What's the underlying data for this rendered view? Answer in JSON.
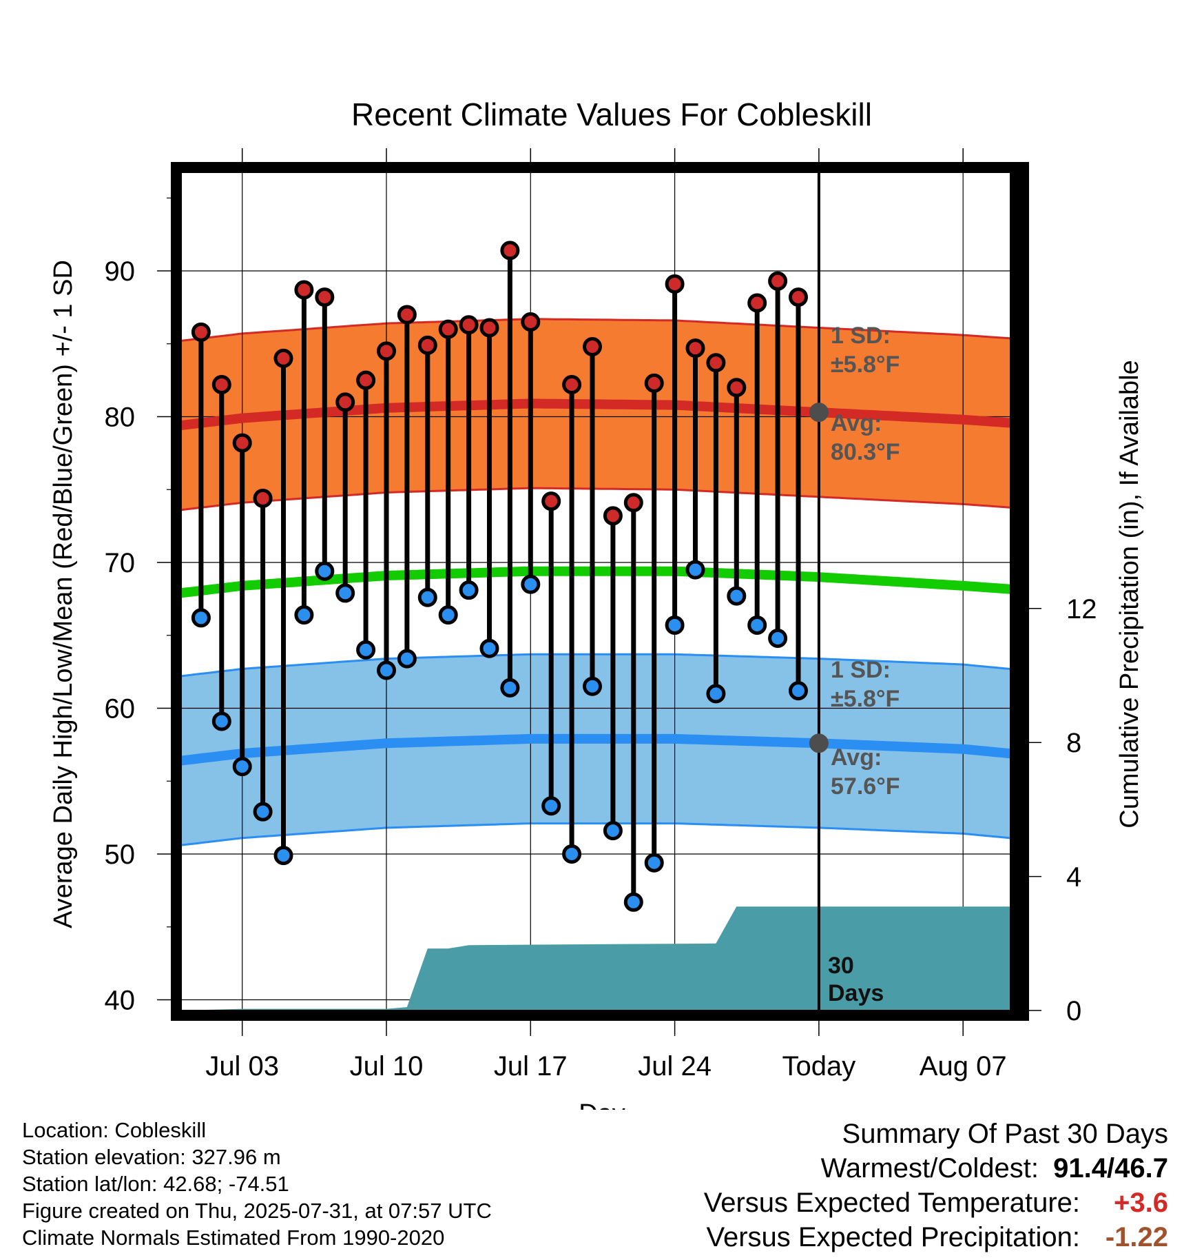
{
  "chart_data": {
    "type": "line",
    "title": "Recent Climate Values For Cobleskill",
    "xlabel": "Day",
    "ylabel": "Average Daily High/Low/Mean (Red/Blue/Green) +/- 1 SD",
    "y2label": "Cumulative Precipitation (in), If Available",
    "ylim": [
      39,
      97
    ],
    "y2lim": [
      0,
      19.4
    ],
    "x_tick_labels": [
      "Jul 03",
      "Jul 10",
      "Jul 17",
      "Jul 24",
      "Today",
      "Aug 07"
    ],
    "y_ticks": [
      40,
      50,
      60,
      70,
      80,
      90
    ],
    "y2_ticks": [
      0,
      4,
      8,
      12
    ],
    "grid": true,
    "days": [
      {
        "day": "Jul 01",
        "high": 85.8,
        "low": 66.2
      },
      {
        "day": "Jul 02",
        "high": 82.2,
        "low": 59.1
      },
      {
        "day": "Jul 03",
        "high": 78.2,
        "low": 56.0
      },
      {
        "day": "Jul 04",
        "high": 74.4,
        "low": 52.9
      },
      {
        "day": "Jul 05",
        "high": 84.0,
        "low": 49.9
      },
      {
        "day": "Jul 06",
        "high": 88.7,
        "low": 66.4
      },
      {
        "day": "Jul 07",
        "high": 88.2,
        "low": 69.4
      },
      {
        "day": "Jul 08",
        "high": 81.0,
        "low": 67.9
      },
      {
        "day": "Jul 09",
        "high": 82.5,
        "low": 64.0
      },
      {
        "day": "Jul 10",
        "high": 84.5,
        "low": 62.6
      },
      {
        "day": "Jul 11",
        "high": 87.0,
        "low": 63.4
      },
      {
        "day": "Jul 12",
        "high": 84.9,
        "low": 67.6
      },
      {
        "day": "Jul 13",
        "high": 86.0,
        "low": 66.4
      },
      {
        "day": "Jul 14",
        "high": 86.3,
        "low": 68.1
      },
      {
        "day": "Jul 15",
        "high": 86.1,
        "low": 64.1
      },
      {
        "day": "Jul 16",
        "high": 91.4,
        "low": 61.4
      },
      {
        "day": "Jul 17",
        "high": 86.5,
        "low": 68.5
      },
      {
        "day": "Jul 18",
        "high": 74.2,
        "low": 53.3
      },
      {
        "day": "Jul 19",
        "high": 82.2,
        "low": 50.0
      },
      {
        "day": "Jul 20",
        "high": 84.8,
        "low": 61.5
      },
      {
        "day": "Jul 21",
        "high": 73.2,
        "low": 51.6
      },
      {
        "day": "Jul 22",
        "high": 74.1,
        "low": 46.7
      },
      {
        "day": "Jul 23",
        "high": 82.3,
        "low": 49.4
      },
      {
        "day": "Jul 24",
        "high": 89.1,
        "low": 65.7
      },
      {
        "day": "Jul 25",
        "high": 84.7,
        "low": 69.5
      },
      {
        "day": "Jul 26",
        "high": 83.7,
        "low": 61.0
      },
      {
        "day": "Jul 27",
        "high": 82.0,
        "low": 67.7
      },
      {
        "day": "Jul 28",
        "high": 87.8,
        "low": 65.7
      },
      {
        "day": "Jul 29",
        "high": 89.3,
        "low": 64.8
      },
      {
        "day": "Jul 30",
        "high": 88.2,
        "low": 61.2
      }
    ],
    "normals": {
      "x": [
        "Jun 30",
        "Jul 03",
        "Jul 10",
        "Jul 17",
        "Jul 24",
        "Jul 31",
        "Aug 07",
        "Aug 10"
      ],
      "high_avg": [
        79.4,
        79.9,
        80.6,
        80.9,
        80.8,
        80.3,
        79.8,
        79.5
      ],
      "low_avg": [
        56.4,
        56.9,
        57.6,
        57.9,
        57.9,
        57.6,
        57.2,
        56.8
      ],
      "mean_avg": [
        67.9,
        68.4,
        69.1,
        69.4,
        69.4,
        69.0,
        68.4,
        68.1
      ],
      "sd": 5.8
    },
    "precip_cumulative": {
      "x": [
        "Jun 30",
        "Jul 03",
        "Jul 10",
        "Jul 11",
        "Jul 12",
        "Jul 13",
        "Jul 14",
        "Jul 26",
        "Jul 27",
        "Aug 10"
      ],
      "values": [
        0.0,
        0.05,
        0.05,
        0.1,
        1.85,
        1.85,
        1.95,
        2.0,
        3.1,
        3.1
      ]
    },
    "annotations": {
      "high_sd": "1 SD:",
      "high_sd_value": "±5.8°F",
      "high_avg_label": "Avg:",
      "high_avg_value": "80.3°F",
      "low_sd": "1 SD:",
      "low_sd_value": "±5.8°F",
      "low_avg_label": "Avg:",
      "low_avg_value": "57.6°F",
      "days_count": "30",
      "days_word": "Days"
    },
    "colors": {
      "high_band": "#f47b30",
      "high_line": "#d42a26",
      "low_band": "#86c1e8",
      "low_line": "#2a8ef2",
      "mean_line": "#12cc00",
      "precip": "#4a9ca6",
      "high_dot": "#cf2a2a",
      "low_dot": "#2b8fef"
    }
  },
  "footer": {
    "location": "Location: Cobleskill",
    "elevation": "Station elevation: 327.96 m",
    "latlon": "Station lat/lon: 42.68; -74.51",
    "created": "Figure created on Thu, 2025-07-31, at 07:57 UTC",
    "normals": "Climate Normals Estimated From 1990-2020"
  },
  "summary": {
    "heading": "Summary Of Past 30 Days",
    "warm_cold_label": "Warmest/Coldest:",
    "warm_cold_value": "91.4/46.7",
    "temp_label": "Versus Expected Temperature:",
    "temp_value": "+3.6",
    "temp_color": "#d42a26",
    "precip_label": "Versus Expected Precipitation:",
    "precip_value": "-1.22",
    "precip_color": "#a0522d"
  }
}
